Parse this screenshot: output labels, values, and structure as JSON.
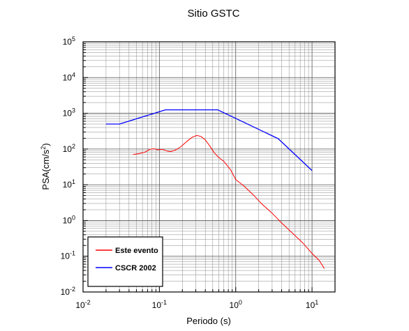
{
  "chart_data": {
    "type": "line",
    "title": "Sitio GSTC",
    "xlabel": "Periodo (s)",
    "ylabel_base": "PSA(cm/s",
    "ylabel_sup": "2",
    "ylabel_end": ")",
    "x_scale": "log",
    "y_scale": "log",
    "xlim": [
      0.01,
      20
    ],
    "ylim": [
      0.01,
      100000
    ],
    "x_ticks": [
      {
        "base": "10",
        "exp": "-2",
        "value": 0.01
      },
      {
        "base": "10",
        "exp": "-1",
        "value": 0.1
      },
      {
        "base": "10",
        "exp": "0",
        "value": 1
      },
      {
        "base": "10",
        "exp": "1",
        "value": 10
      }
    ],
    "y_ticks": [
      {
        "base": "10",
        "exp": "-2",
        "value": 0.01
      },
      {
        "base": "10",
        "exp": "-1",
        "value": 0.1
      },
      {
        "base": "10",
        "exp": "0",
        "value": 1
      },
      {
        "base": "10",
        "exp": "1",
        "value": 10
      },
      {
        "base": "10",
        "exp": "2",
        "value": 100
      },
      {
        "base": "10",
        "exp": "3",
        "value": 1000
      },
      {
        "base": "10",
        "exp": "4",
        "value": 10000
      },
      {
        "base": "10",
        "exp": "5",
        "value": 100000
      }
    ],
    "grid": true,
    "legend_position": "bottom-left",
    "series": [
      {
        "name": "Este evento",
        "color": "#ff0000",
        "points": [
          [
            0.045,
            70
          ],
          [
            0.055,
            75
          ],
          [
            0.065,
            82
          ],
          [
            0.075,
            98
          ],
          [
            0.085,
            102
          ],
          [
            0.095,
            95
          ],
          [
            0.11,
            98
          ],
          [
            0.125,
            88
          ],
          [
            0.14,
            85
          ],
          [
            0.16,
            92
          ],
          [
            0.19,
            115
          ],
          [
            0.23,
            165
          ],
          [
            0.27,
            215
          ],
          [
            0.31,
            240
          ],
          [
            0.35,
            225
          ],
          [
            0.4,
            180
          ],
          [
            0.46,
            120
          ],
          [
            0.52,
            80
          ],
          [
            0.6,
            58
          ],
          [
            0.7,
            45
          ],
          [
            0.85,
            27
          ],
          [
            1.0,
            14
          ],
          [
            1.3,
            9
          ],
          [
            1.7,
            5.2
          ],
          [
            2.2,
            2.9
          ],
          [
            3.0,
            1.6
          ],
          [
            4.0,
            0.85
          ],
          [
            5.5,
            0.45
          ],
          [
            7.5,
            0.24
          ],
          [
            10,
            0.12
          ],
          [
            12.5,
            0.075
          ],
          [
            14.5,
            0.045
          ]
        ]
      },
      {
        "name": "CSCR 2002",
        "color": "#0000ff",
        "points": [
          [
            0.02,
            500
          ],
          [
            0.03,
            500
          ],
          [
            0.12,
            1250
          ],
          [
            0.58,
            1250
          ],
          [
            3.6,
            195
          ],
          [
            10,
            25
          ]
        ]
      }
    ]
  }
}
